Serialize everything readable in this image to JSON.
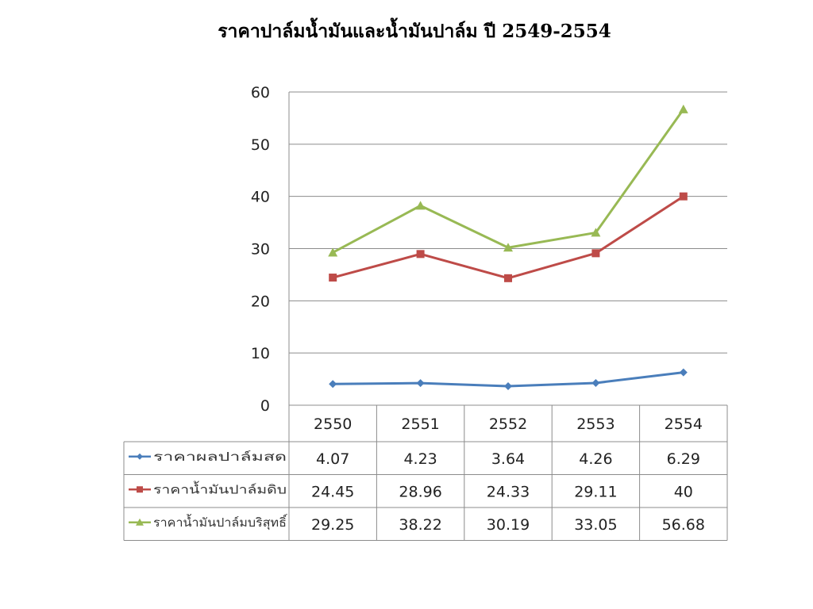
{
  "chart_data": {
    "type": "line",
    "title": "ราคาปาล์มน้ำมันและน้ำมันปาล์ม ปี 2549-2554",
    "categories": [
      "2550",
      "2551",
      "2552",
      "2553",
      "2554"
    ],
    "ylim": [
      0,
      60
    ],
    "yticks": [
      0,
      10,
      20,
      30,
      40,
      50,
      60
    ],
    "grid": true,
    "legend": "data-table-left",
    "series": [
      {
        "name": "ราคาผลปาล์มสด",
        "values": [
          4.07,
          4.23,
          3.64,
          4.26,
          6.29
        ],
        "color": "#4a7ebb",
        "marker": "diamond",
        "labels": [
          "4.07",
          "4.23",
          "3.64",
          "4.26",
          "6.29"
        ]
      },
      {
        "name": "ราคาน้ำมันปาล์มดิบ",
        "values": [
          24.45,
          28.96,
          24.33,
          29.11,
          40
        ],
        "color": "#be4b48",
        "marker": "square",
        "labels": [
          "24.45",
          "28.96",
          "24.33",
          "29.11",
          "40"
        ]
      },
      {
        "name": "ราคาน้ำมันปาล์มบริสุทธิ์",
        "values": [
          29.25,
          38.22,
          30.19,
          33.05,
          56.68
        ],
        "color": "#98b954",
        "marker": "triangle",
        "labels": [
          "29.25",
          "38.22",
          "30.19",
          "33.05",
          "56.68"
        ]
      }
    ]
  }
}
